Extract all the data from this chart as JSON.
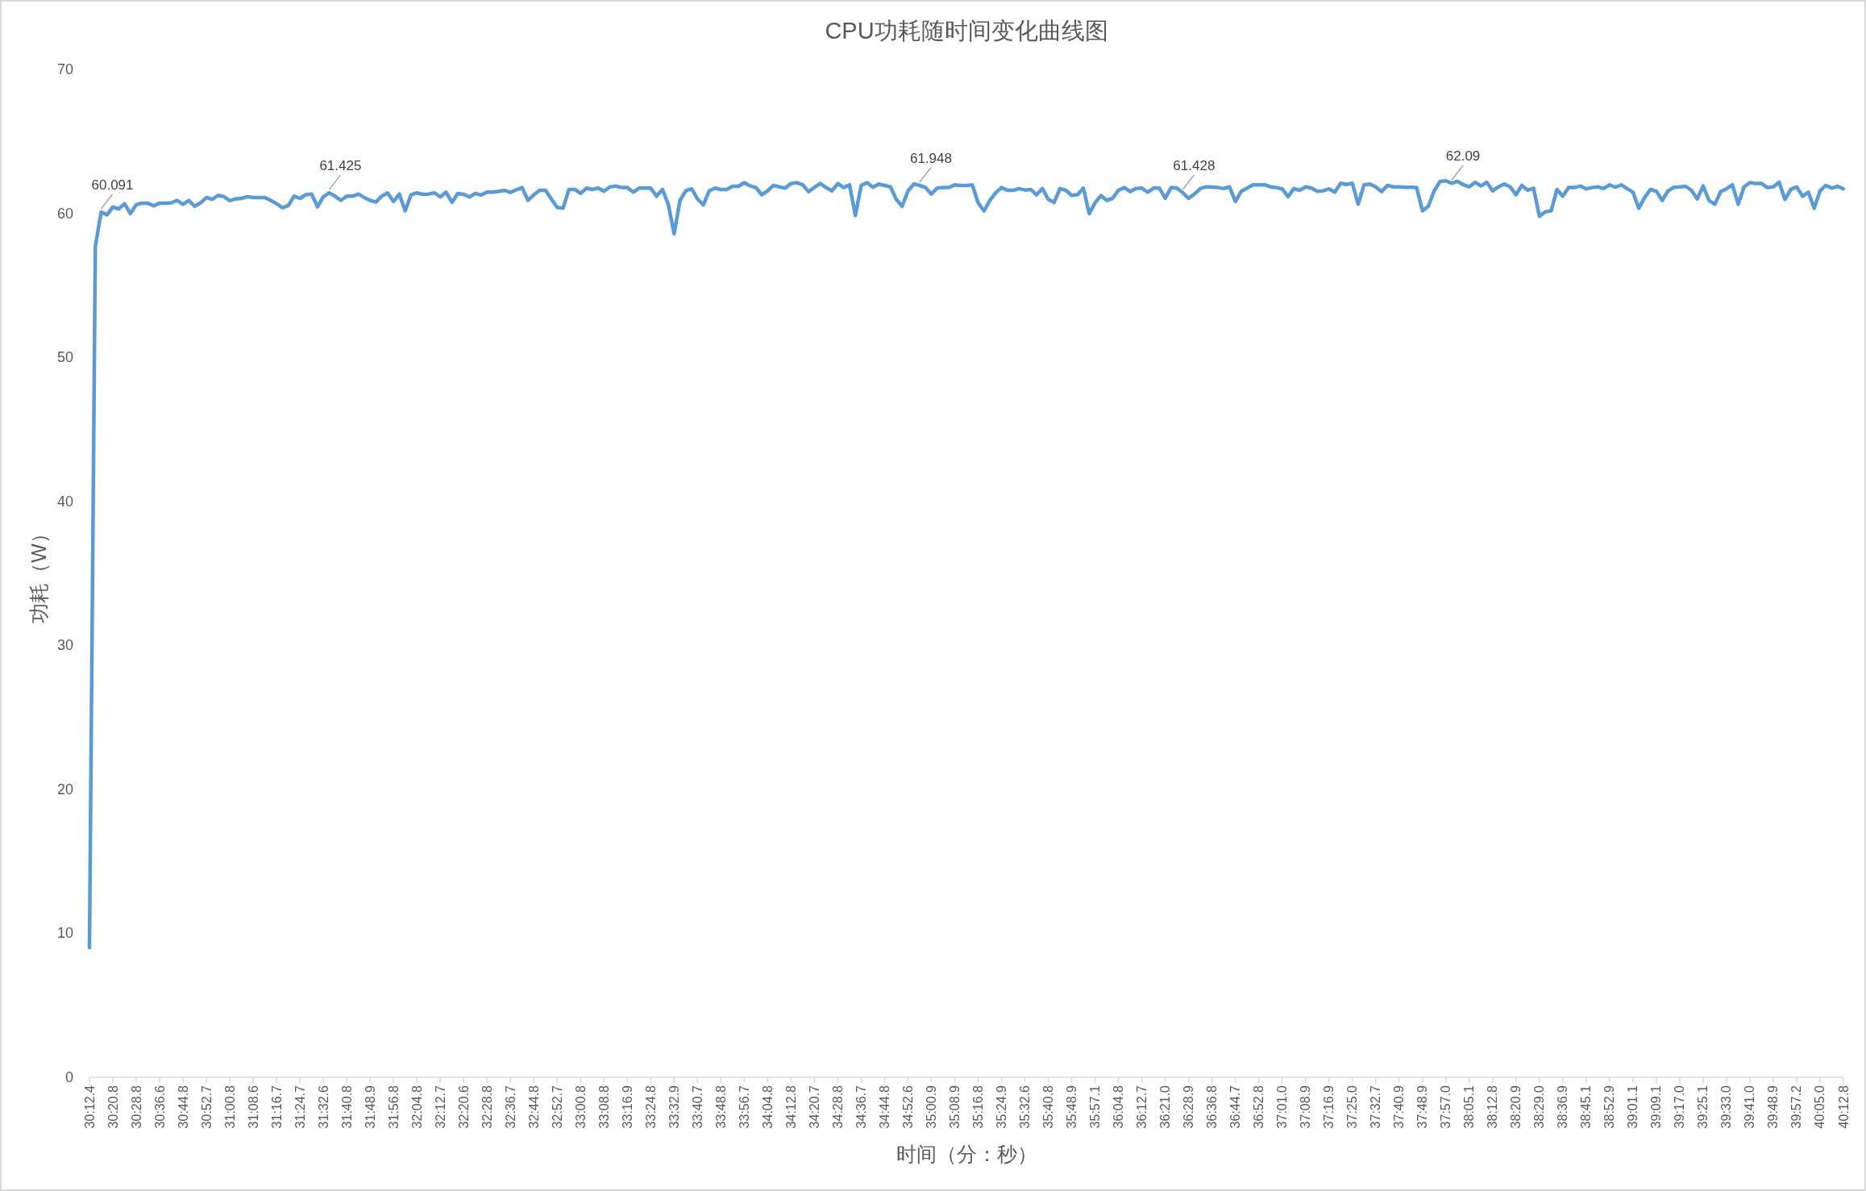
{
  "chart_data": {
    "type": "line",
    "title": "CPU功耗随时间变化曲线图",
    "xlabel": "时间（分：秒）",
    "ylabel": "功耗（W）",
    "color": "#5b9bd5",
    "ylim": [
      0,
      70
    ],
    "yticks": [
      0,
      10,
      20,
      30,
      40,
      50,
      60,
      70
    ],
    "categories": [
      "30:12.4",
      null,
      null,
      null,
      "30:20.8",
      null,
      null,
      null,
      "30:28.8",
      null,
      null,
      null,
      "30:36.6",
      null,
      null,
      null,
      "30:44.8",
      null,
      null,
      null,
      "30:52.7",
      null,
      null,
      null,
      "31:00.8",
      null,
      null,
      null,
      "31:08.6",
      null,
      null,
      null,
      "31:16.7",
      null,
      null,
      null,
      "31:24.7",
      null,
      null,
      null,
      "31:32.6",
      null,
      null,
      null,
      "31:40.8",
      null,
      null,
      null,
      "31:48.9",
      null,
      null,
      null,
      "31:56.8",
      null,
      null,
      null,
      "32:04.8",
      null,
      null,
      null,
      "32:12.7",
      null,
      null,
      null,
      "32:20.6",
      null,
      null,
      null,
      "32:28.8",
      null,
      null,
      null,
      "32:36.7",
      null,
      null,
      null,
      "32:44.8",
      null,
      null,
      null,
      "32:52.7",
      null,
      null,
      null,
      "33:00.8",
      null,
      null,
      null,
      "33:08.8",
      null,
      null,
      null,
      "33:16.9",
      null,
      null,
      null,
      "33:24.8",
      null,
      null,
      null,
      "33:32.9",
      null,
      null,
      null,
      "33:40.7",
      null,
      null,
      null,
      "33:48.8",
      null,
      null,
      null,
      "33:56.7",
      null,
      null,
      null,
      "34:04.8",
      null,
      null,
      null,
      "34:12.8",
      null,
      null,
      null,
      "34:20.7",
      null,
      null,
      null,
      "34:28.8",
      null,
      null,
      null,
      "34:36.7",
      null,
      null,
      null,
      "34:44.8",
      null,
      null,
      null,
      "34:52.6",
      null,
      null,
      null,
      "35:00.9",
      null,
      null,
      null,
      "35:08.9",
      null,
      null,
      null,
      "35:16.8",
      null,
      null,
      null,
      "35:24.9",
      null,
      null,
      null,
      "35:32.6",
      null,
      null,
      null,
      "35:40.8",
      null,
      null,
      null,
      "35:48.9",
      null,
      null,
      null,
      "35:57.1",
      null,
      null,
      null,
      "36:04.8",
      null,
      null,
      null,
      "36:12.7",
      null,
      null,
      null,
      "36:21.0",
      null,
      null,
      null,
      "36:28.9",
      null,
      null,
      null,
      "36:36.8",
      null,
      null,
      null,
      "36:44.7",
      null,
      null,
      null,
      "36:52.8",
      null,
      null,
      null,
      "37:01.0",
      null,
      null,
      null,
      "37:08.9",
      null,
      null,
      null,
      "37:16.9",
      null,
      null,
      null,
      "37:25.0",
      null,
      null,
      null,
      "37:32.7",
      null,
      null,
      null,
      "37:40.9",
      null,
      null,
      null,
      "37:48.9",
      null,
      null,
      null,
      "37:57.0",
      null,
      null,
      null,
      "38:05.1",
      null,
      null,
      null,
      "38:12.8",
      null,
      null,
      null,
      "38:20.9",
      null,
      null,
      null,
      "38:29.0",
      null,
      null,
      null,
      "38:36.9",
      null,
      null,
      null,
      "38:45.1",
      null,
      null,
      null,
      "38:52.9",
      null,
      null,
      null,
      "39:01.1",
      null,
      null,
      null,
      "39:09.1",
      null,
      null,
      null,
      "39:17.0",
      null,
      null,
      null,
      "39:25.1",
      null,
      null,
      null,
      "39:33.0",
      null,
      null,
      null,
      "39:41.0",
      null,
      null,
      null,
      "39:48.9",
      null,
      null,
      null,
      "39:57.2",
      null,
      null,
      null,
      "40:05.0",
      null,
      null,
      null,
      "40:12.8"
    ],
    "values": [
      9,
      57.7,
      60.091,
      59.9,
      60.45,
      60.3,
      60.67,
      59.98,
      60.6,
      60.71,
      60.7,
      60.52,
      60.71,
      60.71,
      60.73,
      60.9,
      60.63,
      60.9,
      60.49,
      60.73,
      61.1,
      60.97,
      61.25,
      61.16,
      60.88,
      61.0,
      61.04,
      61.16,
      61.1,
      61.1,
      61.1,
      60.9,
      60.67,
      60.39,
      60.54,
      61.19,
      61.04,
      61.29,
      61.34,
      60.45,
      61.14,
      61.425,
      61.19,
      60.9,
      61.19,
      61.19,
      61.34,
      61.1,
      60.9,
      60.78,
      61.2,
      61.42,
      60.82,
      61.34,
      60.17,
      61.29,
      61.42,
      61.32,
      61.34,
      61.42,
      61.14,
      61.47,
      60.76,
      61.38,
      61.32,
      61.14,
      61.38,
      61.27,
      61.47,
      61.47,
      61.53,
      61.6,
      61.45,
      61.64,
      61.79,
      60.9,
      61.29,
      61.6,
      61.6,
      61.0,
      60.41,
      60.35,
      61.66,
      61.66,
      61.38,
      61.75,
      61.66,
      61.75,
      61.53,
      61.83,
      61.9,
      61.79,
      61.79,
      61.47,
      61.75,
      61.75,
      61.75,
      61.19,
      61.66,
      60.63,
      58.58,
      60.9,
      61.56,
      61.7,
      61.0,
      60.58,
      61.56,
      61.75,
      61.66,
      61.66,
      61.88,
      61.88,
      62.13,
      61.9,
      61.79,
      61.29,
      61.56,
      61.94,
      61.84,
      61.75,
      62.07,
      62.13,
      61.98,
      61.51,
      61.81,
      62.07,
      61.79,
      61.56,
      62.07,
      61.79,
      61.98,
      59.85,
      61.94,
      62.13,
      61.81,
      62.03,
      61.94,
      61.84,
      60.97,
      60.49,
      61.56,
      62.03,
      61.948,
      61.79,
      61.34,
      61.75,
      61.79,
      61.79,
      61.98,
      61.94,
      61.94,
      61.98,
      60.73,
      60.17,
      60.9,
      61.42,
      61.79,
      61.6,
      61.6,
      61.72,
      61.62,
      61.66,
      61.29,
      61.72,
      60.97,
      60.76,
      61.72,
      61.6,
      61.25,
      61.29,
      61.75,
      59.98,
      60.73,
      61.23,
      60.9,
      61.04,
      61.6,
      61.79,
      61.51,
      61.72,
      61.75,
      61.47,
      61.75,
      61.75,
      61.04,
      61.79,
      61.75,
      61.428,
      61.04,
      61.34,
      61.72,
      61.84,
      61.83,
      61.79,
      61.72,
      61.84,
      60.82,
      61.53,
      61.75,
      61.98,
      61.98,
      61.98,
      61.84,
      61.79,
      61.7,
      61.16,
      61.72,
      61.6,
      61.84,
      61.75,
      61.53,
      61.56,
      61.7,
      61.47,
      62.09,
      62.01,
      62.09,
      60.63,
      61.98,
      62.03,
      61.84,
      61.51,
      61.94,
      61.84,
      61.84,
      61.81,
      61.81,
      61.79,
      60.17,
      60.49,
      61.56,
      62.22,
      62.26,
      62.09,
      62.22,
      61.98,
      61.84,
      62.16,
      61.9,
      62.16,
      61.56,
      61.84,
      62.03,
      61.84,
      61.29,
      61.94,
      61.6,
      61.75,
      59.8,
      60.11,
      60.17,
      61.66,
      61.19,
      61.79,
      61.79,
      61.9,
      61.7,
      61.79,
      61.84,
      61.72,
      61.98,
      61.81,
      61.98,
      61.72,
      61.47,
      60.35,
      61.1,
      61.66,
      61.53,
      60.9,
      61.56,
      61.81,
      61.84,
      61.88,
      61.6,
      61.0,
      61.9,
      60.9,
      60.63,
      61.51,
      61.7,
      61.98,
      60.63,
      61.84,
      62.13,
      62.07,
      62.07,
      61.79,
      61.84,
      62.16,
      60.97,
      61.66,
      61.84,
      61.19,
      61.47,
      60.35,
      61.56,
      61.94,
      61.75,
      61.88,
      61.7
    ],
    "value_labels": [
      null,
      null,
      "60.091",
      null,
      null,
      null,
      null,
      null,
      null,
      null,
      null,
      null,
      null,
      null,
      null,
      null,
      null,
      null,
      null,
      null,
      null,
      null,
      null,
      null,
      null,
      null,
      null,
      null,
      null,
      null,
      null,
      null,
      null,
      null,
      null,
      null,
      null,
      null,
      null,
      null,
      null,
      "61.425",
      null,
      null,
      null,
      null,
      null,
      null,
      null,
      null,
      null,
      null,
      null,
      null,
      null,
      null,
      null,
      null,
      null,
      null,
      null,
      null,
      null,
      null,
      null,
      null,
      null,
      null,
      null,
      null,
      null,
      null,
      null,
      null,
      null,
      null,
      null,
      null,
      null,
      null,
      null,
      null,
      null,
      null,
      null,
      null,
      null,
      null,
      null,
      null,
      null,
      null,
      null,
      null,
      null,
      null,
      null,
      null,
      null,
      null,
      null,
      null,
      null,
      null,
      null,
      null,
      null,
      null,
      null,
      null,
      null,
      null,
      null,
      null,
      null,
      null,
      null,
      null,
      null,
      null,
      null,
      null,
      null,
      null,
      null,
      null,
      null,
      null,
      null,
      null,
      null,
      null,
      null,
      null,
      null,
      null,
      null,
      null,
      null,
      null,
      null,
      null,
      "61.948",
      null,
      null,
      null,
      null,
      null,
      null,
      null,
      null,
      null,
      null,
      null,
      null,
      null,
      null,
      null,
      null,
      null,
      null,
      null,
      null,
      null,
      null,
      null,
      null,
      null,
      null,
      null,
      null,
      null,
      null,
      null,
      null,
      null,
      null,
      null,
      null,
      null,
      null,
      null,
      null,
      null,
      null,
      null,
      null,
      "61.428",
      null,
      null,
      null,
      null,
      null,
      null,
      null,
      null,
      null,
      null,
      null,
      null,
      null,
      null,
      null,
      null,
      null,
      null,
      null,
      null,
      null,
      null,
      null,
      null,
      null,
      null,
      null,
      null,
      null,
      null,
      null,
      null,
      null,
      null,
      null,
      null,
      null,
      null,
      null,
      null,
      null,
      null,
      null,
      null,
      null,
      "62.09",
      null,
      null,
      null,
      null,
      null,
      null,
      null,
      null,
      null,
      null,
      null,
      null,
      null,
      null,
      null,
      null,
      null,
      null,
      null,
      null,
      null,
      null,
      null,
      null,
      null,
      null,
      null,
      null,
      null,
      null,
      null,
      null,
      null,
      null,
      null,
      null,
      null,
      null,
      null,
      null,
      null,
      null,
      null,
      null,
      null,
      null,
      null,
      null,
      null,
      null,
      null,
      null,
      null,
      null,
      null,
      null,
      null,
      null,
      null,
      null,
      null,
      null,
      null,
      null,
      null,
      null,
      null
    ]
  }
}
